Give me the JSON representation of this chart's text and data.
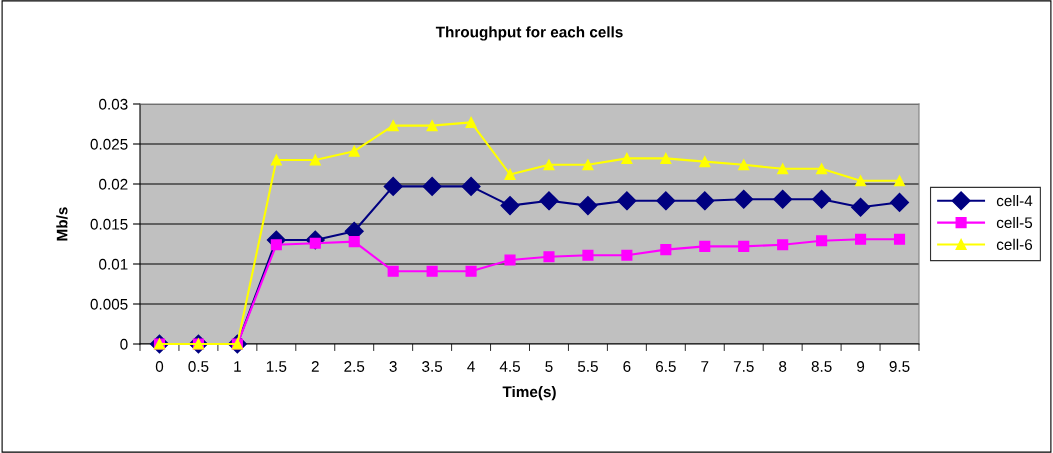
{
  "chart_data": {
    "type": "line",
    "title": "Throughput for each cells",
    "xlabel": "Time(s)",
    "ylabel": "Mb/s",
    "categories": [
      "0",
      "0.5",
      "1",
      "1.5",
      "2",
      "2.5",
      "3",
      "3.5",
      "4",
      "4.5",
      "5",
      "5.5",
      "6",
      "6.5",
      "7",
      "7.5",
      "8",
      "8.5",
      "9",
      "9.5"
    ],
    "series": [
      {
        "name": "cell-4",
        "color": "#000080",
        "marker": "diamond",
        "values": [
          0,
          0,
          0,
          0.013,
          0.013,
          0.0141,
          0.0197,
          0.0197,
          0.0197,
          0.0173,
          0.0179,
          0.0173,
          0.0179,
          0.0179,
          0.0179,
          0.0181,
          0.0181,
          0.0181,
          0.0171,
          0.0177
        ]
      },
      {
        "name": "cell-5",
        "color": "#ff00ff",
        "marker": "square",
        "values": [
          0,
          0,
          0,
          0.0124,
          0.0126,
          0.0128,
          0.0091,
          0.0091,
          0.0091,
          0.0105,
          0.0109,
          0.0111,
          0.0111,
          0.0118,
          0.0122,
          0.0122,
          0.0124,
          0.0129,
          0.0131,
          0.0131
        ]
      },
      {
        "name": "cell-6",
        "color": "#ffff00",
        "marker": "triangle",
        "values": [
          0,
          0,
          0,
          0.023,
          0.023,
          0.0241,
          0.0273,
          0.0273,
          0.0277,
          0.0212,
          0.0224,
          0.0224,
          0.0232,
          0.0232,
          0.0228,
          0.0224,
          0.0219,
          0.0219,
          0.0204,
          0.0204
        ]
      }
    ],
    "ylim": [
      0,
      0.03
    ],
    "yticks": [
      0,
      0.005,
      0.01,
      0.015,
      0.02,
      0.025,
      0.03
    ],
    "grid": "y",
    "legend": "right"
  }
}
